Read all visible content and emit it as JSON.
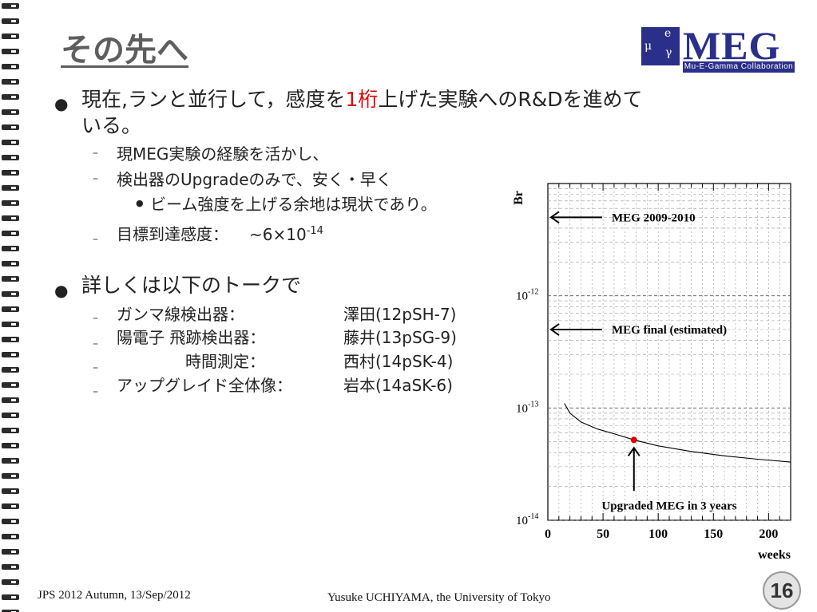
{
  "title": "その先へ",
  "logo": {
    "main": "MEG",
    "sub": "Mu-E-Gamma Collaboration",
    "mark_e": "e",
    "mark_mu": "μ",
    "mark_gamma": "γ"
  },
  "bullet1": {
    "text_pre": "現在,ランと並行して，感度を",
    "text_red": "1桁",
    "text_post": "上げた実験へのR&Dを進めて",
    "text_line2": "いる。"
  },
  "sub1": [
    {
      "text": "現MEG実験の経験を活かし、"
    },
    {
      "text": "検出器のUpgradeのみで、安く・早く"
    }
  ],
  "sub1_nested": "ビーム強度を上げる余地は現状であり。",
  "sub1_target": {
    "label": "目標到達感度：",
    "value": "~6×10",
    "exp": "-14"
  },
  "bullet2": "詳しくは以下のトークで",
  "talks": [
    {
      "label": "ガンマ線検出器：",
      "speaker": "澤田(12pSH-7)"
    },
    {
      "label": "陽電子 飛跡検出器：",
      "speaker": "藤井(13pSG-9)"
    },
    {
      "label": "時間測定：",
      "speaker": "西村(14pSK-4)"
    },
    {
      "label": "アップグレイド全体像：",
      "speaker": "岩本(14aSK-6)"
    }
  ],
  "chart_data": {
    "type": "line",
    "ylabel": "Br",
    "xlabel": "weeks",
    "xlim": [
      0,
      220
    ],
    "ylim": [
      1e-14,
      1e-11
    ],
    "yscale": "log",
    "xticks": [
      0,
      50,
      100,
      150,
      200
    ],
    "yticks": [
      {
        "base": "10",
        "exp": "-12",
        "value": 1e-12
      },
      {
        "base": "10",
        "exp": "-13",
        "value": 1e-13
      },
      {
        "base": "10",
        "exp": "-14",
        "value": 1e-14
      }
    ],
    "grid": true,
    "series": [
      {
        "x": [
          15,
          20,
          30,
          45,
          60,
          78,
          100,
          130,
          160,
          190,
          220
        ],
        "y": [
          1.1e-13,
          9e-14,
          7.5e-14,
          6.5e-14,
          5.9e-14,
          5.2e-14,
          4.6e-14,
          4.1e-14,
          3.75e-14,
          3.5e-14,
          3.3e-14
        ]
      }
    ],
    "marker": {
      "x": 78,
      "y": 5.2e-14,
      "color": "#e00000"
    },
    "annotations": [
      {
        "text": "MEG 2009-2010",
        "y": 5e-12
      },
      {
        "text": "MEG final (estimated)",
        "y": 5e-13
      },
      {
        "text": "Upgraded MEG in 3 years",
        "x": 78
      }
    ]
  },
  "footer": {
    "left": "JPS 2012 Autumn, 13/Sep/2012",
    "center": "Yusuke UCHIYAMA, the University of Tokyo",
    "page": "16"
  }
}
